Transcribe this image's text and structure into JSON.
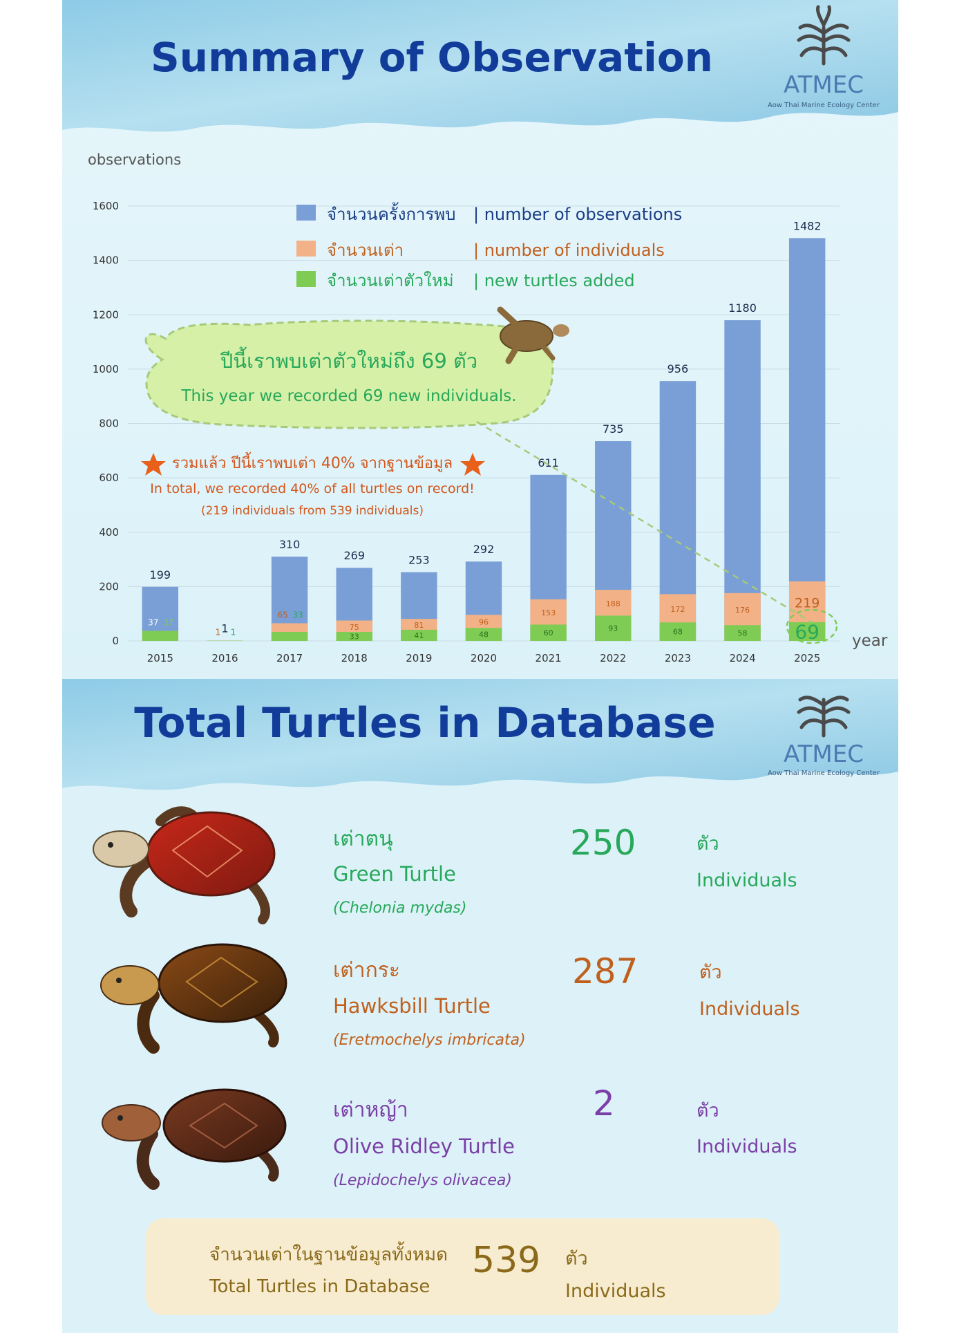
{
  "top_section": {
    "title": "Summary of Observation",
    "logo": {
      "icon": "palm-icon",
      "name": "ATMEC",
      "tagline": "Aow Thai Marine Ecology Center"
    }
  },
  "chart_data": {
    "type": "bar",
    "xlabel": "year",
    "ylabel": "observations",
    "ylim": [
      0,
      1600
    ],
    "yticks": [
      0,
      200,
      400,
      600,
      800,
      1000,
      1200,
      1400,
      1600
    ],
    "categories": [
      "2015",
      "2016",
      "2017",
      "2018",
      "2019",
      "2020",
      "2021",
      "2022",
      "2023",
      "2024",
      "2025"
    ],
    "series": [
      {
        "name": "จำนวนครั้งการพบ | number of observations",
        "values": [
          199,
          1,
          310,
          269,
          253,
          292,
          611,
          735,
          956,
          1180,
          1482
        ]
      },
      {
        "name": "จำนวนเต่า | number of individuals",
        "values": [
          37,
          1,
          65,
          75,
          81,
          96,
          153,
          188,
          172,
          176,
          219
        ]
      },
      {
        "name": "จำนวนเต่าตัวใหม่ | new turtles added",
        "values": [
          37,
          1,
          33,
          33,
          41,
          48,
          60,
          93,
          68,
          58,
          69
        ]
      }
    ],
    "legend": [
      {
        "th": "จำนวนครั้งการพบ",
        "en": "| number of observations",
        "color": "#7a9fd6"
      },
      {
        "th": "จำนวนเต่า",
        "en": "| number of individuals",
        "color": "#f2b186"
      },
      {
        "th": "จำนวนเต่าตัวใหม่",
        "en": "| new turtles added",
        "color": "#7fcc55"
      }
    ],
    "legend_position": "top",
    "grid": true,
    "callout": {
      "th": "ปีนี้เราพบเต่าตัวใหม่ถึง 69 ตัว",
      "en": "This year we recorded 69 new individuals."
    },
    "note": {
      "th": "รวมแล้ว ปีนี้เราพบเต่า 40% จากฐานข้อมูล",
      "en": "In total, we recorded 40% of all turtles on record!",
      "detail": "(219 individuals from 539 individuals)"
    },
    "colors": {
      "observations": "#7a9fd6",
      "individuals": "#f2b186",
      "new": "#7fcc55",
      "axis_text": "#333333"
    }
  },
  "bottom_section": {
    "title": "Total Turtles in Database",
    "logo": {
      "icon": "palm-icon",
      "name": "ATMEC",
      "tagline": "Aow Thai Marine Ecology Center"
    },
    "species": [
      {
        "icon": "green-turtle-icon",
        "name_th": "เต่าตนุ",
        "name_en": "Green Turtle",
        "scientific": "(Chelonia mydas)",
        "count": "250",
        "unit_th": "ตัว",
        "unit_en": "Individuals",
        "color": "#27a85a"
      },
      {
        "icon": "hawksbill-turtle-icon",
        "name_th": "เต่ากระ",
        "name_en": "Hawksbill Turtle",
        "scientific": "(Eretmochelys imbricata)",
        "count": "287",
        "unit_th": "ตัว",
        "unit_en": "Individuals",
        "color": "#c0601e"
      },
      {
        "icon": "olive-ridley-turtle-icon",
        "name_th": "เต่าหญ้า",
        "name_en": "Olive Ridley Turtle",
        "scientific": "(Lepidochelys olivacea)",
        "count": "2",
        "unit_th": "ตัว",
        "unit_en": "Individuals",
        "color": "#7a3fa6"
      }
    ],
    "total": {
      "th": "จำนวนเต่าในฐานข้อมูลทั้งหมด",
      "en": "Total Turtles in Database",
      "count": "539",
      "unit_th": "ตัว",
      "unit_en": "Individuals",
      "color": "#8a6a1a"
    }
  }
}
